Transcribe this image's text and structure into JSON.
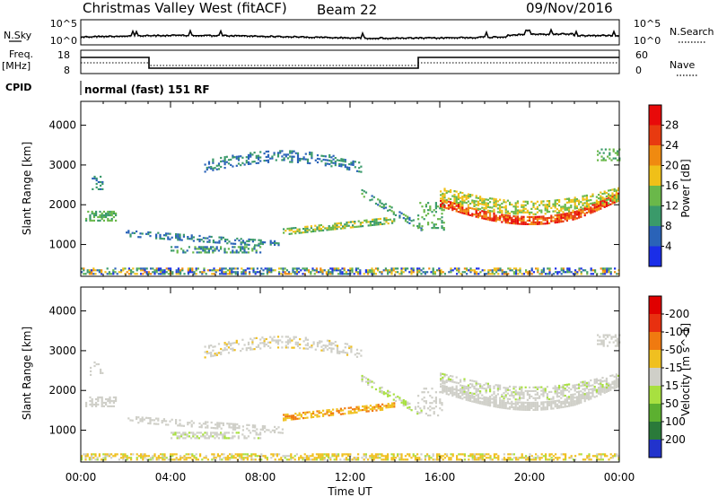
{
  "header": {
    "radar": "Christmas Valley West (fitACF)",
    "beam": "Beam 22",
    "date": "09/Nov/2016"
  },
  "params": {
    "nsky_label": "N.Sky",
    "nsearch_label": "N.Search",
    "freq_label_top": "Freq.",
    "freq_label_unit": "[MHz]",
    "nave_label": "Nave",
    "cpid_label": "CPID",
    "cpid_text": "normal (fast) 151 RF",
    "noise_ticks_left": [
      "10^5",
      "10^0"
    ],
    "noise_ticks_right": [
      "10^5",
      "10^0"
    ],
    "freq_ticks": [
      "18",
      "8"
    ],
    "nave_ticks": [
      "60",
      "0"
    ]
  },
  "chart_data": [
    {
      "type": "heatmap",
      "name_printed": "",
      "ylabel": "Slant Range [km]",
      "ylim": [
        200,
        4600
      ],
      "yticks": [
        1000,
        2000,
        3000,
        4000
      ],
      "xlim": [
        0,
        24
      ],
      "colorbar_label": "Power [dB]",
      "colorbar_ticks": [
        "4",
        "8",
        "12",
        "16",
        "20",
        "24",
        "28"
      ],
      "colors": [
        "#1a2ee8",
        "#2a63b8",
        "#3a9a6a",
        "#6ab84a",
        "#f0c018",
        "#f08a10",
        "#e83a10",
        "#e80a0a"
      ]
    },
    {
      "type": "heatmap",
      "ylabel": "Slant Range [km]",
      "ylim": [
        200,
        4600
      ],
      "yticks": [
        1000,
        2000,
        3000,
        4000
      ],
      "xlim": [
        0,
        24
      ],
      "xticks": [
        "00:00",
        "04:00",
        "08:00",
        "12:00",
        "16:00",
        "20:00",
        "00:00"
      ],
      "xlabel": "Time UT",
      "colorbar_label": "Velocity [m s^-1]",
      "colorbar_ticks": [
        "200",
        "100",
        "50",
        "15",
        "-15",
        "-50",
        "-100",
        "-200"
      ],
      "colors": [
        "#2233cc",
        "#2a7a3a",
        "#5cb030",
        "#a8e040",
        "#cfcfc8",
        "#f0c020",
        "#f07a10",
        "#e83010",
        "#e00000"
      ]
    }
  ]
}
